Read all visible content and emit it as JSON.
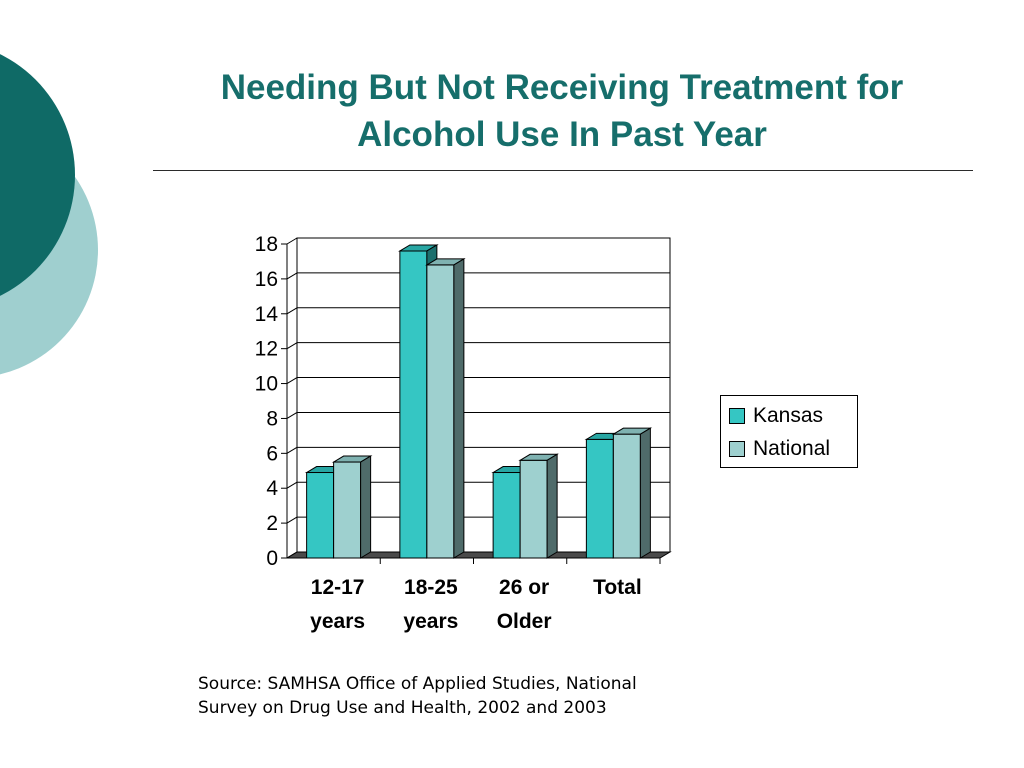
{
  "title": {
    "line1": "Needing But Not Receiving Treatment for",
    "line2": "Alcohol Use In Past Year"
  },
  "source": {
    "line1": "Source:  SAMHSA Office of Applied Studies, National",
    "line2": "Survey on Drug Use and Health, 2002 and 2003"
  },
  "colors": {
    "title": "#166e6b",
    "deco_dark": "#0f6a66",
    "deco_light": "#9fcfcf",
    "kansas": "#35c6c3",
    "national": "#9ed0cf"
  },
  "chart_data": {
    "type": "bar",
    "title": "",
    "xlabel": "",
    "ylabel": "",
    "ylim": [
      0,
      18
    ],
    "yticks": [
      "0",
      "2",
      "4",
      "6",
      "8",
      "10",
      "12",
      "14",
      "16",
      "18"
    ],
    "categories": [
      [
        "12-17",
        "years"
      ],
      [
        "18-25",
        "years"
      ],
      [
        "26 or",
        "Older"
      ],
      [
        "Total"
      ]
    ],
    "series": [
      {
        "name": "Kansas",
        "values": [
          4.9,
          17.6,
          4.9,
          6.8
        ]
      },
      {
        "name": "National",
        "values": [
          5.5,
          16.8,
          5.6,
          7.1
        ]
      }
    ],
    "grid": true,
    "legend": "right",
    "style": "3d"
  }
}
